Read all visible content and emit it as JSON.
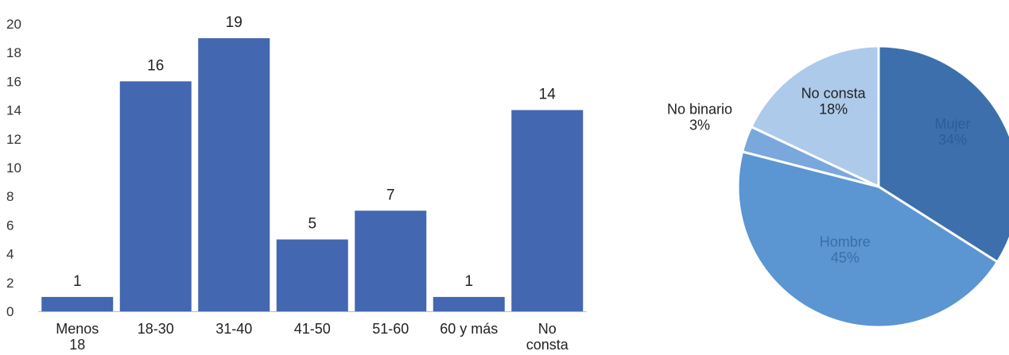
{
  "chart_data": [
    {
      "type": "bar",
      "categories": [
        [
          "Menos",
          "18"
        ],
        [
          "18-30"
        ],
        [
          "31-40"
        ],
        [
          "41-50"
        ],
        [
          "51-60"
        ],
        [
          "60 y más"
        ],
        [
          "No",
          "consta"
        ]
      ],
      "values": [
        1,
        16,
        19,
        5,
        7,
        1,
        14
      ],
      "data_labels": [
        "1",
        "16",
        "19",
        "5",
        "7",
        "1",
        "14"
      ],
      "y_ticks": [
        "0",
        "2",
        "4",
        "6",
        "8",
        "10",
        "12",
        "14",
        "16",
        "18",
        "20"
      ],
      "ylim": [
        0,
        20
      ],
      "grid": false,
      "color": "#4367b0"
    },
    {
      "type": "pie",
      "start": "12 o'clock, clockwise",
      "slices": [
        {
          "name": "Mujer",
          "pct_label": "34%",
          "value": 34,
          "color": "#3c6fab",
          "text_color": "#2a5d99"
        },
        {
          "name": "Hombre",
          "pct_label": "45%",
          "value": 45,
          "color": "#5b95d2",
          "text_color": "#3a6ea8"
        },
        {
          "name": "No binario",
          "pct_label": "3%",
          "value": 3,
          "color": "#7aa8dd",
          "text_color": "#222222"
        },
        {
          "name": "No consta",
          "pct_label": "18%",
          "value": 18,
          "color": "#aecaea",
          "text_color": "#222222"
        }
      ]
    }
  ]
}
